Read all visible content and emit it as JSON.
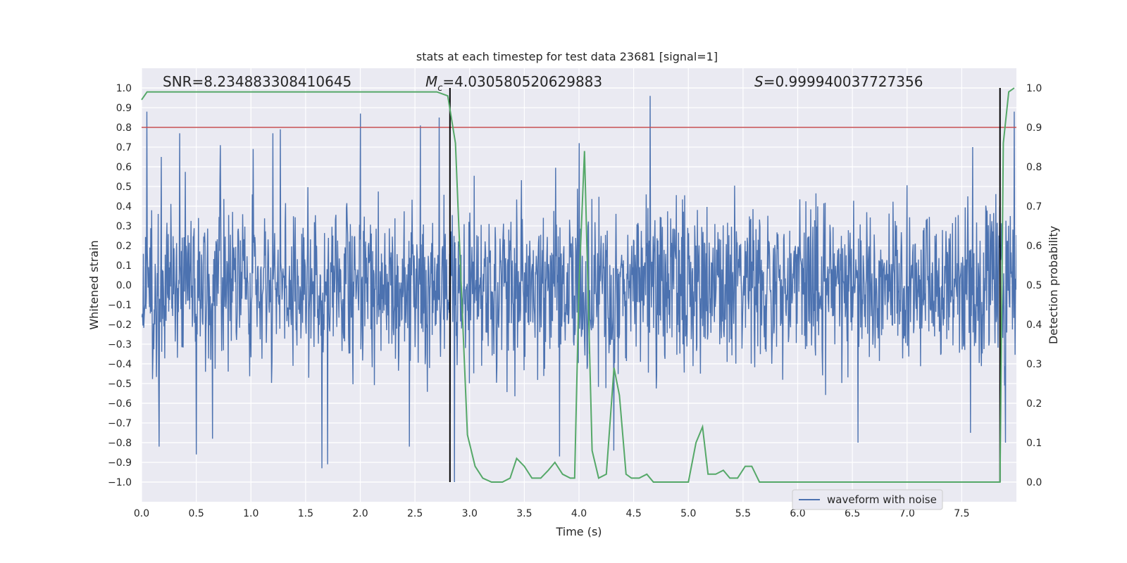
{
  "chart_data": {
    "type": "line",
    "title": "stats at each timestep for test data 23681 [signal=1]",
    "xlabel": "Time (s)",
    "ylabel_left": "Whitened strain",
    "ylabel_right": "Detection probability",
    "xlim": [
      0.0,
      8.0
    ],
    "ylim_left": [
      -1.1,
      1.1
    ],
    "ylim_right": [
      -0.05,
      1.05
    ],
    "x_ticks": [
      0.0,
      0.5,
      1.0,
      1.5,
      2.0,
      2.5,
      3.0,
      3.5,
      4.0,
      4.5,
      5.0,
      5.5,
      6.0,
      6.5,
      7.0,
      7.5
    ],
    "x_tick_labels": [
      "0.0",
      "0.5",
      "1.0",
      "1.5",
      "2.0",
      "2.5",
      "3.0",
      "3.5",
      "4.0",
      "4.5",
      "5.0",
      "5.5",
      "6.0",
      "6.5",
      "7.0",
      "7.5"
    ],
    "y_ticks_left": [
      1.0,
      0.9,
      0.8,
      0.7,
      0.6,
      0.5,
      0.4,
      0.3,
      0.2,
      0.1,
      0.0,
      -0.1,
      -0.2,
      -0.3,
      -0.4,
      -0.5,
      -0.6,
      -0.7,
      -0.8,
      -0.9,
      -1.0
    ],
    "y_tick_labels_left": [
      "1.0",
      "0.9",
      "0.8",
      "0.7",
      "0.6",
      "0.5",
      "0.4",
      "0.3",
      "0.2",
      "0.1",
      "0.0",
      "−0.1",
      "−0.2",
      "−0.3",
      "−0.4",
      "−0.5",
      "−0.6",
      "−0.7",
      "−0.8",
      "−0.9",
      "−1.0"
    ],
    "y_ticks_right": [
      1.0,
      0.9,
      0.8,
      0.7,
      0.6,
      0.5,
      0.4,
      0.3,
      0.2,
      0.1,
      0.0
    ],
    "y_tick_labels_right": [
      "1.0",
      "0.9",
      "0.8",
      "0.7",
      "0.6",
      "0.5",
      "0.4",
      "0.3",
      "0.2",
      "0.1",
      "0.0"
    ],
    "annotations": {
      "snr": "SNR=8.234883308410645",
      "mc_symbol": "M",
      "mc_sub": "c",
      "mc_value": "=4.030580520629883",
      "s_symbol": "S",
      "s_value": "=0.999940037727356"
    },
    "threshold": {
      "axis": "right",
      "value": 0.9,
      "color": "#c44e52"
    },
    "vertical_markers": [
      2.82,
      7.85
    ],
    "waveform": {
      "name": "waveform with noise",
      "color": "#4c72b0",
      "sample_count": 2000,
      "seed": 23681,
      "envelope": 0.27,
      "spikes": [
        {
          "t": 0.05,
          "v": 0.88
        },
        {
          "t": 0.18,
          "v": 0.65
        },
        {
          "t": 0.35,
          "v": 0.77
        },
        {
          "t": 0.5,
          "v": 0.8
        },
        {
          "t": 0.72,
          "v": 0.71
        },
        {
          "t": 1.02,
          "v": 0.69
        },
        {
          "t": 1.2,
          "v": 0.77
        },
        {
          "t": 1.27,
          "v": 0.79
        },
        {
          "t": 2.0,
          "v": 0.87
        },
        {
          "t": 2.55,
          "v": 0.81
        },
        {
          "t": 2.72,
          "v": 0.85
        },
        {
          "t": 4.0,
          "v": 0.72
        },
        {
          "t": 4.65,
          "v": 0.96
        },
        {
          "t": 7.6,
          "v": 0.7
        },
        {
          "t": 7.98,
          "v": 0.88
        },
        {
          "t": 0.16,
          "v": -0.82
        },
        {
          "t": 0.5,
          "v": -0.86
        },
        {
          "t": 0.65,
          "v": -0.78
        },
        {
          "t": 1.65,
          "v": -0.93
        },
        {
          "t": 1.7,
          "v": -0.91
        },
        {
          "t": 2.45,
          "v": -0.82
        },
        {
          "t": 2.82,
          "v": -0.65
        },
        {
          "t": 2.86,
          "v": -1.0
        },
        {
          "t": 3.82,
          "v": -0.87
        },
        {
          "t": 4.32,
          "v": -0.84
        },
        {
          "t": 6.55,
          "v": -0.8
        },
        {
          "t": 7.58,
          "v": -0.75
        },
        {
          "t": 7.9,
          "v": -0.8
        }
      ]
    },
    "probability": {
      "color": "#55a868",
      "x": [
        0.0,
        0.05,
        0.1,
        0.5,
        1.0,
        1.5,
        2.0,
        2.5,
        2.7,
        2.8,
        2.87,
        2.93,
        2.98,
        3.05,
        3.12,
        3.2,
        3.3,
        3.37,
        3.43,
        3.5,
        3.57,
        3.65,
        3.72,
        3.78,
        3.85,
        3.92,
        3.96,
        4.0,
        4.05,
        4.12,
        4.18,
        4.25,
        4.32,
        4.37,
        4.43,
        4.48,
        4.55,
        4.62,
        4.68,
        4.75,
        4.85,
        5.0,
        5.07,
        5.13,
        5.18,
        5.25,
        5.32,
        5.38,
        5.45,
        5.52,
        5.58,
        5.65,
        5.75,
        5.85,
        6.0,
        6.5,
        7.0,
        7.5,
        7.85,
        7.88,
        7.93,
        7.98
      ],
      "y": [
        0.97,
        0.99,
        0.99,
        0.99,
        0.99,
        0.99,
        0.99,
        0.99,
        0.99,
        0.98,
        0.86,
        0.45,
        0.12,
        0.04,
        0.01,
        0.0,
        0.0,
        0.01,
        0.06,
        0.04,
        0.01,
        0.01,
        0.03,
        0.05,
        0.02,
        0.01,
        0.01,
        0.5,
        0.84,
        0.08,
        0.01,
        0.02,
        0.29,
        0.22,
        0.02,
        0.01,
        0.01,
        0.02,
        0.0,
        0.0,
        0.0,
        0.0,
        0.1,
        0.14,
        0.02,
        0.02,
        0.03,
        0.01,
        0.01,
        0.04,
        0.04,
        0.0,
        0.0,
        0.0,
        0.0,
        0.0,
        0.0,
        0.0,
        0.0,
        0.86,
        0.99,
        1.0
      ]
    },
    "legend": {
      "label": "waveform with noise",
      "placement": "lower-right"
    },
    "grid": true,
    "background_color": "#eaeaf2"
  }
}
